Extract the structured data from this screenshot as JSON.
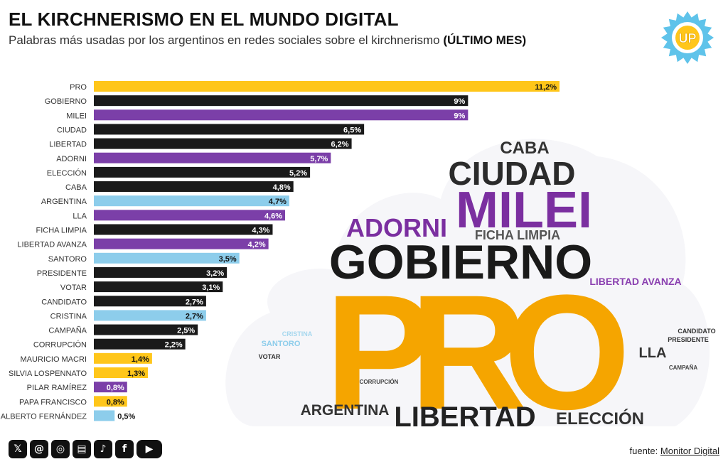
{
  "header": {
    "title": "EL KIRCHNERISMO EN EL MUNDO DIGITAL",
    "subtitle": "Palabras más usadas por los argentinos en redes sociales sobre el kirchnerismo",
    "subtitle_bold": "(ÚLTIMO MES)"
  },
  "logo": {
    "text": "UP",
    "icon": "sun-badge-icon"
  },
  "colors": {
    "yellow": "#ffc61a",
    "black": "#1a1a1a",
    "purple": "#7b3fa8",
    "blue": "#8dcdeb",
    "orange": "#f5a500"
  },
  "chart_data": {
    "type": "bar",
    "orientation": "horizontal",
    "title": "EL KIRCHNERISMO EN EL MUNDO DIGITAL",
    "unit": "%",
    "xlim": [
      0,
      11.2
    ],
    "categories": [
      "PRO",
      "GOBIERNO",
      "MILEI",
      "CIUDAD",
      "LIBERTAD",
      "ADORNI",
      "ELECCIÓN",
      "CABA",
      "ARGENTINA",
      "LLA",
      "FICHA LIMPIA",
      "LIBERTAD AVANZA",
      "SANTORO",
      "PRESIDENTE",
      "VOTAR",
      "CANDIDATO",
      "CRISTINA",
      "CAMPAÑA",
      "CORRUPCIÓN",
      "MAURICIO MACRI",
      "SILVIA LOSPENNATO",
      "PILAR RAMÍREZ",
      "PAPA FRANCISCO",
      "ALBERTO FERNÁNDEZ"
    ],
    "values": [
      11.2,
      9,
      9,
      6.5,
      6.2,
      5.7,
      5.2,
      4.8,
      4.7,
      4.6,
      4.3,
      4.2,
      3.5,
      3.2,
      3.1,
      2.7,
      2.7,
      2.5,
      2.2,
      1.4,
      1.3,
      0.8,
      0.8,
      0.5
    ],
    "labels": [
      "11,2%",
      "9%",
      "9%",
      "6,5%",
      "6,2%",
      "5,7%",
      "5,2%",
      "4,8%",
      "4,7%",
      "4,6%",
      "4,3%",
      "4,2%",
      "3,5%",
      "3,2%",
      "3,1%",
      "2,7%",
      "2,7%",
      "2,5%",
      "2,2%",
      "1,4%",
      "1,3%",
      "0,8%",
      "0,8%",
      "0,5%"
    ],
    "bar_colors": [
      "yellow",
      "black",
      "purple",
      "black",
      "black",
      "purple",
      "black",
      "black",
      "blue",
      "purple",
      "black",
      "purple",
      "blue",
      "black",
      "black",
      "black",
      "blue",
      "black",
      "black",
      "yellow",
      "yellow",
      "purple",
      "yellow",
      "blue"
    ]
  },
  "word_cloud": {
    "words": [
      {
        "text": "CABA",
        "color": "#333333"
      },
      {
        "text": "CIUDAD",
        "color": "#2b2b2b"
      },
      {
        "text": "MILEI",
        "color": "#7b2fa0"
      },
      {
        "text": "ADORNI",
        "color": "#7b2fa0"
      },
      {
        "text": "FICHA LIMPIA",
        "color": "#555555"
      },
      {
        "text": "GOBIERNO",
        "color": "#1a1a1a"
      },
      {
        "text": "LIBERTAD AVANZA",
        "color": "#8a3fb0"
      },
      {
        "text": "PRO",
        "color": "#f5a500"
      },
      {
        "text": "CANDIDATO",
        "color": "#333333"
      },
      {
        "text": "PRESIDENTE",
        "color": "#333333"
      },
      {
        "text": "CRISTINA",
        "color": "#a6d7ee"
      },
      {
        "text": "SANTORO",
        "color": "#8dcdeb"
      },
      {
        "text": "VOTAR",
        "color": "#333333"
      },
      {
        "text": "LLA",
        "color": "#333333"
      },
      {
        "text": "CAMPAÑA",
        "color": "#444444"
      },
      {
        "text": "CORRUPCIÓN",
        "color": "#444444"
      },
      {
        "text": "ARGENTINA",
        "color": "#333333"
      },
      {
        "text": "LIBERTAD",
        "color": "#222222"
      },
      {
        "text": "ELECCIÓN",
        "color": "#333333"
      }
    ]
  },
  "footer": {
    "social": [
      {
        "icon": "x-icon",
        "glyph": "𝕏"
      },
      {
        "icon": "threads-icon",
        "glyph": "@"
      },
      {
        "icon": "instagram-icon",
        "glyph": "◎"
      },
      {
        "icon": "newsletter-icon",
        "glyph": "▤"
      },
      {
        "icon": "tiktok-icon",
        "glyph": "♪"
      },
      {
        "icon": "facebook-icon",
        "glyph": "f"
      },
      {
        "icon": "youtube-icon",
        "glyph": "▶"
      }
    ],
    "source_prefix": "fuente:",
    "source_link": "Monitor Digital"
  }
}
